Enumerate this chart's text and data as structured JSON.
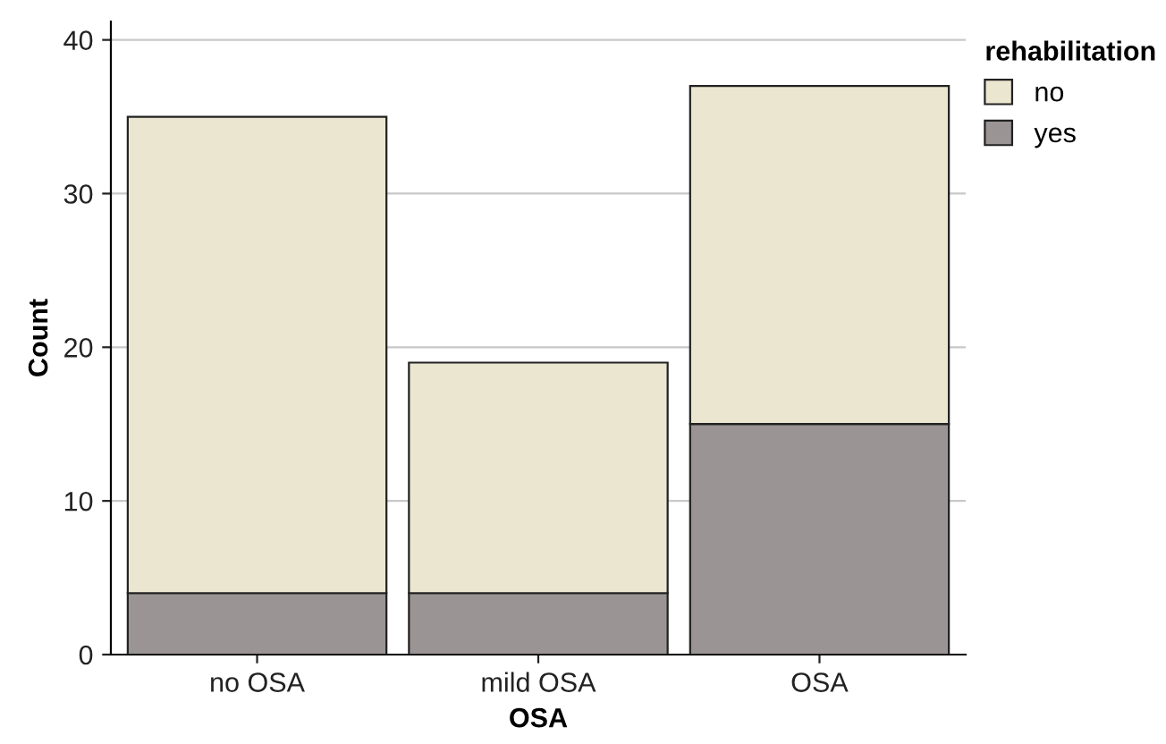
{
  "chart_data": {
    "type": "bar",
    "stacked": true,
    "xlabel": "OSA",
    "ylabel": "Count",
    "legend_title": "rehabilitation",
    "categories": [
      "no OSA",
      "mild OSA",
      "OSA"
    ],
    "series": [
      {
        "name": "yes",
        "color": "#9a9494",
        "values": [
          4,
          4,
          15
        ]
      },
      {
        "name": "no",
        "color": "#ebe6d0",
        "values": [
          31,
          15,
          22
        ]
      }
    ],
    "ylim": [
      0,
      41.2
    ],
    "yticks": [
      0,
      10,
      20,
      30,
      40
    ],
    "grid": "y",
    "legend": "right"
  }
}
